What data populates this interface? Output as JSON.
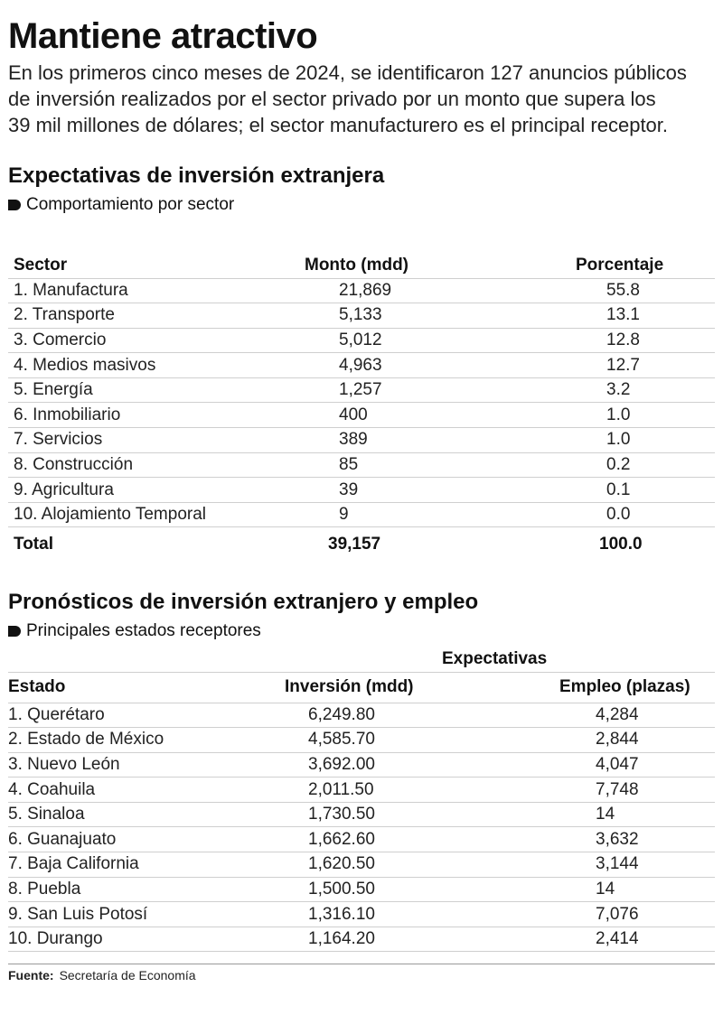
{
  "title": "Mantiene atractivo",
  "intro_lines": [
    "En los primeros cinco meses de 2024, se identificaron 127 anuncios públicos",
    "de inversión realizados por el sector privado por un monto que supera los",
    "39 mil millones de dólares; el sector manufacturero es el principal receptor."
  ],
  "table1": {
    "title": "Expectativas de inversión extranjera",
    "subtitle": "Comportamiento por sector",
    "headers": [
      "Sector",
      "Monto (mdd)",
      "Porcentaje"
    ],
    "rows": [
      [
        "1. Manufactura",
        "21,869",
        "55.8"
      ],
      [
        "2. Transporte",
        "5,133",
        "13.1"
      ],
      [
        "3. Comercio",
        "5,012",
        "12.8"
      ],
      [
        "4. Medios masivos",
        "4,963",
        "12.7"
      ],
      [
        "5. Energía",
        "1,257",
        "3.2"
      ],
      [
        "6. Inmobiliario",
        "400",
        "1.0"
      ],
      [
        "7. Servicios",
        "389",
        "1.0"
      ],
      [
        "8. Construcción",
        "85",
        "0.2"
      ],
      [
        "9. Agricultura",
        "39",
        "0.1"
      ],
      [
        "10. Alojamiento Temporal",
        "9",
        "0.0"
      ]
    ],
    "total": [
      "Total",
      "39,157",
      "100.0"
    ]
  },
  "table2": {
    "title": "Pronósticos de inversión extranjero y empleo",
    "subtitle": "Principales estados receptores",
    "group_header": "Expectativas",
    "headers": [
      "Estado",
      "Inversión (mdd)",
      "Empleo (plazas)"
    ],
    "rows": [
      [
        "1. Querétaro",
        "6,249.80",
        "4,284"
      ],
      [
        "2. Estado de México",
        "4,585.70",
        "2,844"
      ],
      [
        "3. Nuevo León",
        "3,692.00",
        "4,047"
      ],
      [
        "4. Coahuila",
        "2,011.50",
        "7,748"
      ],
      [
        "5. Sinaloa",
        "1,730.50",
        "14"
      ],
      [
        "6. Guanajuato",
        "1,662.60",
        "3,632"
      ],
      [
        "7. Baja California",
        "1,620.50",
        "3,144"
      ],
      [
        "8. Puebla",
        "1,500.50",
        "14"
      ],
      [
        "9. San Luis Potosí",
        "1,316.10",
        "7,076"
      ],
      [
        "10. Durango",
        "1,164.20",
        "2,414"
      ]
    ]
  },
  "footer": {
    "label": "Fuente:",
    "text": "Secretaría de Economía"
  }
}
